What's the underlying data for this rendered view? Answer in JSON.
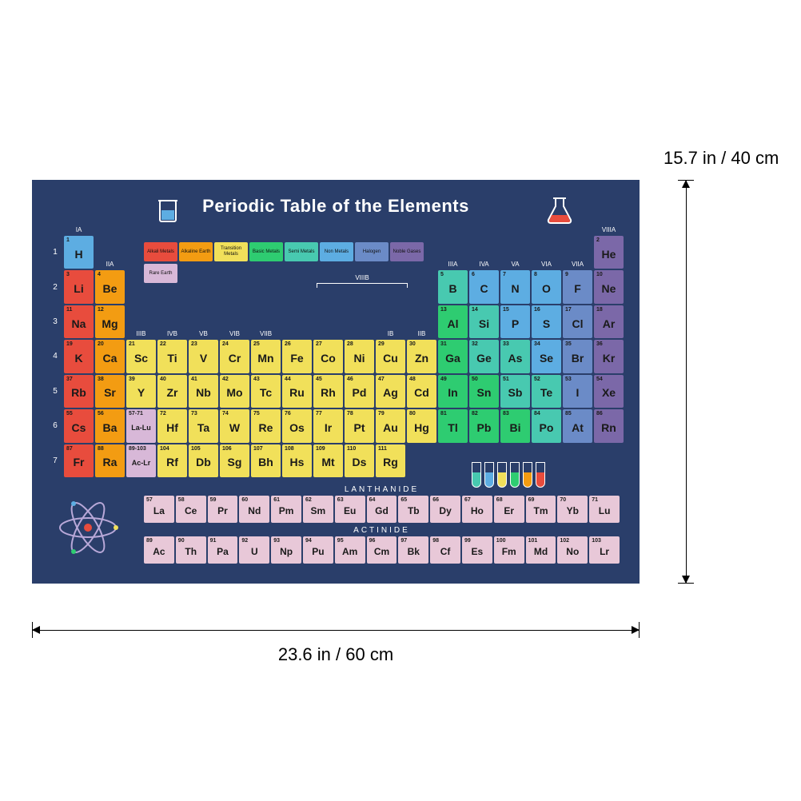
{
  "title": "Periodic Table of the Elements",
  "dimensions": {
    "width_label": "23.6 in / 60 cm",
    "height_label": "15.7 in / 40 cm"
  },
  "colors": {
    "poster_bg": "#2a3e6a",
    "alkali": "#e84c3d",
    "alkaline": "#f39c12",
    "transition": "#f1e05a",
    "basic": "#2ecc71",
    "semi": "#48c9b0",
    "nonmetal": "#5dade2",
    "halogen": "#6b8bc7",
    "noble": "#7b68a8",
    "rare": "#d8b8d8",
    "fblock": "#e8c8d8"
  },
  "legend": [
    {
      "label": "Alkali Metals",
      "color": "#e84c3d"
    },
    {
      "label": "Alkaline Earth",
      "color": "#f39c12"
    },
    {
      "label": "Transition Metals",
      "color": "#f1e05a"
    },
    {
      "label": "Basic Metals",
      "color": "#2ecc71"
    },
    {
      "label": "Semi Metals",
      "color": "#48c9b0"
    },
    {
      "label": "Non Metals",
      "color": "#5dade2"
    },
    {
      "label": "Halogen",
      "color": "#6b8bc7"
    },
    {
      "label": "Noble Gases",
      "color": "#7b68a8"
    }
  ],
  "rare_earth_label": "Rare Earth",
  "viiib_label": "VIIIB",
  "group_labels": [
    "IA",
    "IIA",
    "IIIB",
    "IVB",
    "VB",
    "VIB",
    "VIIB",
    "",
    "",
    "",
    "IB",
    "IIB",
    "IIIA",
    "IVA",
    "VA",
    "VIA",
    "VIIA",
    "VIIIA"
  ],
  "row_numbers": [
    "1",
    "2",
    "3",
    "4",
    "5",
    "6",
    "7"
  ],
  "elements": [
    {
      "n": 1,
      "s": "H",
      "r": 1,
      "c": 1,
      "cat": "nonmetal"
    },
    {
      "n": 2,
      "s": "He",
      "r": 1,
      "c": 18,
      "cat": "noble"
    },
    {
      "n": 3,
      "s": "Li",
      "r": 2,
      "c": 1,
      "cat": "alkali"
    },
    {
      "n": 4,
      "s": "Be",
      "r": 2,
      "c": 2,
      "cat": "alkaline"
    },
    {
      "n": 5,
      "s": "B",
      "r": 2,
      "c": 13,
      "cat": "semi"
    },
    {
      "n": 6,
      "s": "C",
      "r": 2,
      "c": 14,
      "cat": "nonmetal"
    },
    {
      "n": 7,
      "s": "N",
      "r": 2,
      "c": 15,
      "cat": "nonmetal"
    },
    {
      "n": 8,
      "s": "O",
      "r": 2,
      "c": 16,
      "cat": "nonmetal"
    },
    {
      "n": 9,
      "s": "F",
      "r": 2,
      "c": 17,
      "cat": "halogen"
    },
    {
      "n": 10,
      "s": "Ne",
      "r": 2,
      "c": 18,
      "cat": "noble"
    },
    {
      "n": 11,
      "s": "Na",
      "r": 3,
      "c": 1,
      "cat": "alkali"
    },
    {
      "n": 12,
      "s": "Mg",
      "r": 3,
      "c": 2,
      "cat": "alkaline"
    },
    {
      "n": 13,
      "s": "Al",
      "r": 3,
      "c": 13,
      "cat": "basic"
    },
    {
      "n": 14,
      "s": "Si",
      "r": 3,
      "c": 14,
      "cat": "semi"
    },
    {
      "n": 15,
      "s": "P",
      "r": 3,
      "c": 15,
      "cat": "nonmetal"
    },
    {
      "n": 16,
      "s": "S",
      "r": 3,
      "c": 16,
      "cat": "nonmetal"
    },
    {
      "n": 17,
      "s": "Cl",
      "r": 3,
      "c": 17,
      "cat": "halogen"
    },
    {
      "n": 18,
      "s": "Ar",
      "r": 3,
      "c": 18,
      "cat": "noble"
    },
    {
      "n": 19,
      "s": "K",
      "r": 4,
      "c": 1,
      "cat": "alkali"
    },
    {
      "n": 20,
      "s": "Ca",
      "r": 4,
      "c": 2,
      "cat": "alkaline"
    },
    {
      "n": 21,
      "s": "Sc",
      "r": 4,
      "c": 3,
      "cat": "transition"
    },
    {
      "n": 22,
      "s": "Ti",
      "r": 4,
      "c": 4,
      "cat": "transition"
    },
    {
      "n": 23,
      "s": "V",
      "r": 4,
      "c": 5,
      "cat": "transition"
    },
    {
      "n": 24,
      "s": "Cr",
      "r": 4,
      "c": 6,
      "cat": "transition"
    },
    {
      "n": 25,
      "s": "Mn",
      "r": 4,
      "c": 7,
      "cat": "transition"
    },
    {
      "n": 26,
      "s": "Fe",
      "r": 4,
      "c": 8,
      "cat": "transition"
    },
    {
      "n": 27,
      "s": "Co",
      "r": 4,
      "c": 9,
      "cat": "transition"
    },
    {
      "n": 28,
      "s": "Ni",
      "r": 4,
      "c": 10,
      "cat": "transition"
    },
    {
      "n": 29,
      "s": "Cu",
      "r": 4,
      "c": 11,
      "cat": "transition"
    },
    {
      "n": 30,
      "s": "Zn",
      "r": 4,
      "c": 12,
      "cat": "transition"
    },
    {
      "n": 31,
      "s": "Ga",
      "r": 4,
      "c": 13,
      "cat": "basic"
    },
    {
      "n": 32,
      "s": "Ge",
      "r": 4,
      "c": 14,
      "cat": "semi"
    },
    {
      "n": 33,
      "s": "As",
      "r": 4,
      "c": 15,
      "cat": "semi"
    },
    {
      "n": 34,
      "s": "Se",
      "r": 4,
      "c": 16,
      "cat": "nonmetal"
    },
    {
      "n": 35,
      "s": "Br",
      "r": 4,
      "c": 17,
      "cat": "halogen"
    },
    {
      "n": 36,
      "s": "Kr",
      "r": 4,
      "c": 18,
      "cat": "noble"
    },
    {
      "n": 37,
      "s": "Rb",
      "r": 5,
      "c": 1,
      "cat": "alkali"
    },
    {
      "n": 38,
      "s": "Sr",
      "r": 5,
      "c": 2,
      "cat": "alkaline"
    },
    {
      "n": 39,
      "s": "Y",
      "r": 5,
      "c": 3,
      "cat": "transition"
    },
    {
      "n": 40,
      "s": "Zr",
      "r": 5,
      "c": 4,
      "cat": "transition"
    },
    {
      "n": 41,
      "s": "Nb",
      "r": 5,
      "c": 5,
      "cat": "transition"
    },
    {
      "n": 42,
      "s": "Mo",
      "r": 5,
      "c": 6,
      "cat": "transition"
    },
    {
      "n": 43,
      "s": "Tc",
      "r": 5,
      "c": 7,
      "cat": "transition"
    },
    {
      "n": 44,
      "s": "Ru",
      "r": 5,
      "c": 8,
      "cat": "transition"
    },
    {
      "n": 45,
      "s": "Rh",
      "r": 5,
      "c": 9,
      "cat": "transition"
    },
    {
      "n": 46,
      "s": "Pd",
      "r": 5,
      "c": 10,
      "cat": "transition"
    },
    {
      "n": 47,
      "s": "Ag",
      "r": 5,
      "c": 11,
      "cat": "transition"
    },
    {
      "n": 48,
      "s": "Cd",
      "r": 5,
      "c": 12,
      "cat": "transition"
    },
    {
      "n": 49,
      "s": "In",
      "r": 5,
      "c": 13,
      "cat": "basic"
    },
    {
      "n": 50,
      "s": "Sn",
      "r": 5,
      "c": 14,
      "cat": "basic"
    },
    {
      "n": 51,
      "s": "Sb",
      "r": 5,
      "c": 15,
      "cat": "semi"
    },
    {
      "n": 52,
      "s": "Te",
      "r": 5,
      "c": 16,
      "cat": "semi"
    },
    {
      "n": 53,
      "s": "I",
      "r": 5,
      "c": 17,
      "cat": "halogen"
    },
    {
      "n": 54,
      "s": "Xe",
      "r": 5,
      "c": 18,
      "cat": "noble"
    },
    {
      "n": 55,
      "s": "Cs",
      "r": 6,
      "c": 1,
      "cat": "alkali"
    },
    {
      "n": 56,
      "s": "Ba",
      "r": 6,
      "c": 2,
      "cat": "alkaline"
    },
    {
      "n": "57-71",
      "s": "La-Lu",
      "r": 6,
      "c": 3,
      "cat": "rare",
      "special": true
    },
    {
      "n": 72,
      "s": "Hf",
      "r": 6,
      "c": 4,
      "cat": "transition"
    },
    {
      "n": 73,
      "s": "Ta",
      "r": 6,
      "c": 5,
      "cat": "transition"
    },
    {
      "n": 74,
      "s": "W",
      "r": 6,
      "c": 6,
      "cat": "transition"
    },
    {
      "n": 75,
      "s": "Re",
      "r": 6,
      "c": 7,
      "cat": "transition"
    },
    {
      "n": 76,
      "s": "Os",
      "r": 6,
      "c": 8,
      "cat": "transition"
    },
    {
      "n": 77,
      "s": "Ir",
      "r": 6,
      "c": 9,
      "cat": "transition"
    },
    {
      "n": 78,
      "s": "Pt",
      "r": 6,
      "c": 10,
      "cat": "transition"
    },
    {
      "n": 79,
      "s": "Au",
      "r": 6,
      "c": 11,
      "cat": "transition"
    },
    {
      "n": 80,
      "s": "Hg",
      "r": 6,
      "c": 12,
      "cat": "transition"
    },
    {
      "n": 81,
      "s": "Tl",
      "r": 6,
      "c": 13,
      "cat": "basic"
    },
    {
      "n": 82,
      "s": "Pb",
      "r": 6,
      "c": 14,
      "cat": "basic"
    },
    {
      "n": 83,
      "s": "Bi",
      "r": 6,
      "c": 15,
      "cat": "basic"
    },
    {
      "n": 84,
      "s": "Po",
      "r": 6,
      "c": 16,
      "cat": "semi"
    },
    {
      "n": 85,
      "s": "At",
      "r": 6,
      "c": 17,
      "cat": "halogen"
    },
    {
      "n": 86,
      "s": "Rn",
      "r": 6,
      "c": 18,
      "cat": "noble"
    },
    {
      "n": 87,
      "s": "Fr",
      "r": 7,
      "c": 1,
      "cat": "alkali"
    },
    {
      "n": 88,
      "s": "Ra",
      "r": 7,
      "c": 2,
      "cat": "alkaline"
    },
    {
      "n": "89-103",
      "s": "Ac-Lr",
      "r": 7,
      "c": 3,
      "cat": "rare",
      "special": true
    },
    {
      "n": 104,
      "s": "Rf",
      "r": 7,
      "c": 4,
      "cat": "transition"
    },
    {
      "n": 105,
      "s": "Db",
      "r": 7,
      "c": 5,
      "cat": "transition"
    },
    {
      "n": 106,
      "s": "Sg",
      "r": 7,
      "c": 6,
      "cat": "transition"
    },
    {
      "n": 107,
      "s": "Bh",
      "r": 7,
      "c": 7,
      "cat": "transition"
    },
    {
      "n": 108,
      "s": "Hs",
      "r": 7,
      "c": 8,
      "cat": "transition"
    },
    {
      "n": 109,
      "s": "Mt",
      "r": 7,
      "c": 9,
      "cat": "transition"
    },
    {
      "n": 110,
      "s": "Ds",
      "r": 7,
      "c": 10,
      "cat": "transition"
    },
    {
      "n": 111,
      "s": "Rg",
      "r": 7,
      "c": 11,
      "cat": "transition"
    }
  ],
  "lanthanide_title": "LANTHANIDE",
  "lanthanides": [
    {
      "n": 57,
      "s": "La"
    },
    {
      "n": 58,
      "s": "Ce"
    },
    {
      "n": 59,
      "s": "Pr"
    },
    {
      "n": 60,
      "s": "Nd"
    },
    {
      "n": 61,
      "s": "Pm"
    },
    {
      "n": 62,
      "s": "Sm"
    },
    {
      "n": 63,
      "s": "Eu"
    },
    {
      "n": 64,
      "s": "Gd"
    },
    {
      "n": 65,
      "s": "Tb"
    },
    {
      "n": 66,
      "s": "Dy"
    },
    {
      "n": 67,
      "s": "Ho"
    },
    {
      "n": 68,
      "s": "Er"
    },
    {
      "n": 69,
      "s": "Tm"
    },
    {
      "n": 70,
      "s": "Yb"
    },
    {
      "n": 71,
      "s": "Lu"
    }
  ],
  "actinide_title": "ACTINIDE",
  "actinides": [
    {
      "n": 89,
      "s": "Ac"
    },
    {
      "n": 90,
      "s": "Th"
    },
    {
      "n": 91,
      "s": "Pa"
    },
    {
      "n": 92,
      "s": "U"
    },
    {
      "n": 93,
      "s": "Np"
    },
    {
      "n": 94,
      "s": "Pu"
    },
    {
      "n": 95,
      "s": "Am"
    },
    {
      "n": 96,
      "s": "Cm"
    },
    {
      "n": 97,
      "s": "Bk"
    },
    {
      "n": 98,
      "s": "Cf"
    },
    {
      "n": 99,
      "s": "Es"
    },
    {
      "n": 100,
      "s": "Fm"
    },
    {
      "n": 101,
      "s": "Md"
    },
    {
      "n": 102,
      "s": "No"
    },
    {
      "n": 103,
      "s": "Lr"
    }
  ],
  "tube_colors": [
    "#48c9b0",
    "#5dade2",
    "#f1e05a",
    "#2ecc71",
    "#f39c12",
    "#e84c3d"
  ]
}
